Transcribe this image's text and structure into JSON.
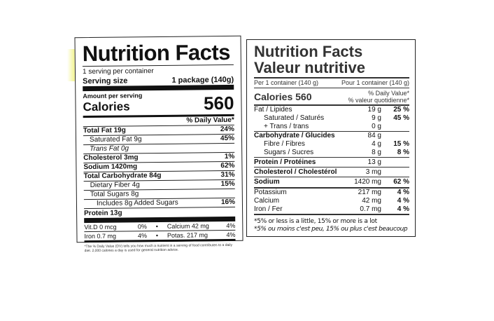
{
  "us": {
    "title": "Nutrition Facts",
    "servings": "1 serving per container",
    "serving_size_label": "Serving size",
    "serving_size_value": "1 package (140g)",
    "amount_per_serving": "Amount per serving",
    "calories_label": "Calories",
    "calories_value": "560",
    "dv_header": "% Daily Value*",
    "rows": [
      {
        "label": "Total Fat 19g",
        "dv": "24%"
      },
      {
        "label": "Saturated Fat 9g",
        "dv": "45%"
      },
      {
        "label": "Trans Fat 0g",
        "dv": ""
      },
      {
        "label": "Cholesterol 3mg",
        "dv": "1%"
      },
      {
        "label": "Sodium 1420mg",
        "dv": "62%"
      },
      {
        "label": "Total Carbohydrate 84g",
        "dv": "31%"
      },
      {
        "label": "Dietary Fiber 4g",
        "dv": "15%"
      },
      {
        "label": "Total Sugars 8g",
        "dv": ""
      },
      {
        "label": "Includes 8g Added Sugars",
        "dv": "16%"
      },
      {
        "label": "Protein 13g",
        "dv": ""
      }
    ],
    "minerals": [
      {
        "a": "Vit.D 0 mcg",
        "ap": "0%",
        "b": "Calcium 42 mg",
        "bp": "4%"
      },
      {
        "a": "Iron 0.7 mg",
        "ap": "4%",
        "b": "Potas. 217 mg",
        "bp": "4%"
      }
    ],
    "footnote": "*The % Daily Value (DV) tells you how much a nutrient in a serving of food contributes to a daily diet. 2,000 calories a day is used for general nutrition advice."
  },
  "ca": {
    "title_en": "Nutrition Facts",
    "title_fr": "Valeur nutritive",
    "per_en": "Per 1 container (140 g)",
    "per_fr": "Pour 1 container (140 g)",
    "calories": "Calories 560",
    "dv_en": "% Daily Value*",
    "dv_fr": "% valeur quotidienne*",
    "rows": [
      {
        "label": "Fat / Lipides",
        "amt": "19 g",
        "dv": "25 %",
        "cls": "top"
      },
      {
        "label": "Saturated / Saturés",
        "amt": "9 g",
        "dv": "45 %",
        "cls": "ind"
      },
      {
        "label": "+ Trans / trans",
        "amt": "0 g",
        "dv": "",
        "cls": "ind"
      },
      {
        "label": "Carbohydrate / Glucides",
        "amt": "84 g",
        "dv": "",
        "cls": "top"
      },
      {
        "label": "Fibre / Fibres",
        "amt": "4 g",
        "dv": "15 %",
        "cls": "ind"
      },
      {
        "label": "Sugars / Sucres",
        "amt": "8 g",
        "dv": "8 %",
        "cls": "ind"
      },
      {
        "label": "Protein / Protéines",
        "amt": "13 g",
        "dv": "",
        "cls": "top"
      },
      {
        "label": "Cholesterol / Cholestérol",
        "amt": "3 mg",
        "dv": "",
        "cls": "top"
      },
      {
        "label": "Sodium",
        "amt": "1420 mg",
        "dv": "62 %",
        "cls": "top"
      },
      {
        "label": "Potassium",
        "amt": "217 mg",
        "dv": "4 %",
        "cls": "plain"
      },
      {
        "label": "Calcium",
        "amt": "42 mg",
        "dv": "4 %",
        "cls": "plain"
      },
      {
        "label": "Iron / Fer",
        "amt": "0.7 mg",
        "dv": "4 %",
        "cls": "plain"
      }
    ],
    "footnote_en": "*5% or less is a little, 15% or more is a lot",
    "footnote_fr": "*5% ou moins c'est peu, 15% ou plus c'est beaucoup"
  }
}
